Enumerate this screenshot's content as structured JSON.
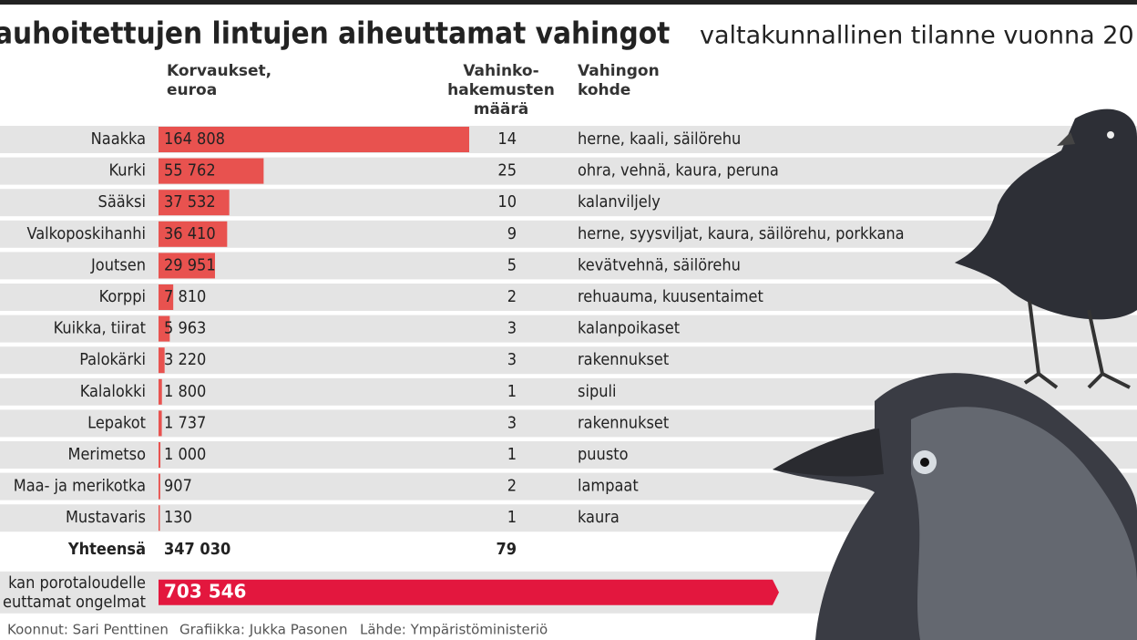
{
  "header": {
    "title": "auhoitettujen lintujen aiheuttamat vahingot",
    "subtitle": "valtakunnallinen tilanne vuonna 20"
  },
  "chart_data": {
    "type": "bar",
    "orientation": "horizontal",
    "color": "#e8524f",
    "columns": {
      "amount": [
        "Korvaukset,",
        "euroa"
      ],
      "applications": [
        "Vahinko-",
        "hakemusten",
        "määrä"
      ],
      "target": [
        "Vahingon",
        "kohde"
      ]
    },
    "categories": [
      "Naakka",
      "Kurki",
      "Sääksi",
      "Valkoposkihanhi",
      "Joutsen",
      "Korppi",
      "Kuikka, tiirat",
      "Palokärki",
      "Kalalokki",
      "Lepakot",
      "Merimetso",
      "Maa- ja merikotka",
      "Mustavaris"
    ],
    "values": [
      164808,
      55762,
      37532,
      36410,
      29951,
      7810,
      5963,
      3220,
      1800,
      1737,
      1000,
      907,
      130
    ],
    "value_labels": [
      "164 808",
      "55 762",
      "37 532",
      "36 410",
      "29 951",
      "7 810",
      "5 963",
      "3 220",
      "1 800",
      "1 737",
      "1 000",
      "907",
      "130"
    ],
    "applications": [
      14,
      25,
      10,
      9,
      5,
      2,
      3,
      3,
      1,
      3,
      1,
      2,
      1
    ],
    "targets": [
      "herne, kaali, säilörehu",
      "ohra, vehnä, kaura, peruna",
      "kalanviljely",
      "herne, syysviljat, kaura, säilörehu, porkkana",
      "kevätvehnä, säilörehu",
      "rehuauma, kuusentaimet",
      "kalanpoikaset",
      "rakennukset",
      "sipuli",
      "rakennukset",
      "puusto",
      "lampaat",
      "kaura"
    ],
    "total": {
      "label": "Yhteensä",
      "value": 347030,
      "value_label": "347 030",
      "applications": 79
    },
    "reindeer": {
      "label": [
        "kan porotaloudelle",
        "euttamat ongelmat"
      ],
      "value": 703546,
      "value_label": "703 546",
      "color": "#e3173e"
    }
  },
  "footer": [
    "Koonnut: Sari Penttinen",
    "Grafiikka: Jukka Pasonen",
    "Lähde: Ympäristöministeriö"
  ]
}
